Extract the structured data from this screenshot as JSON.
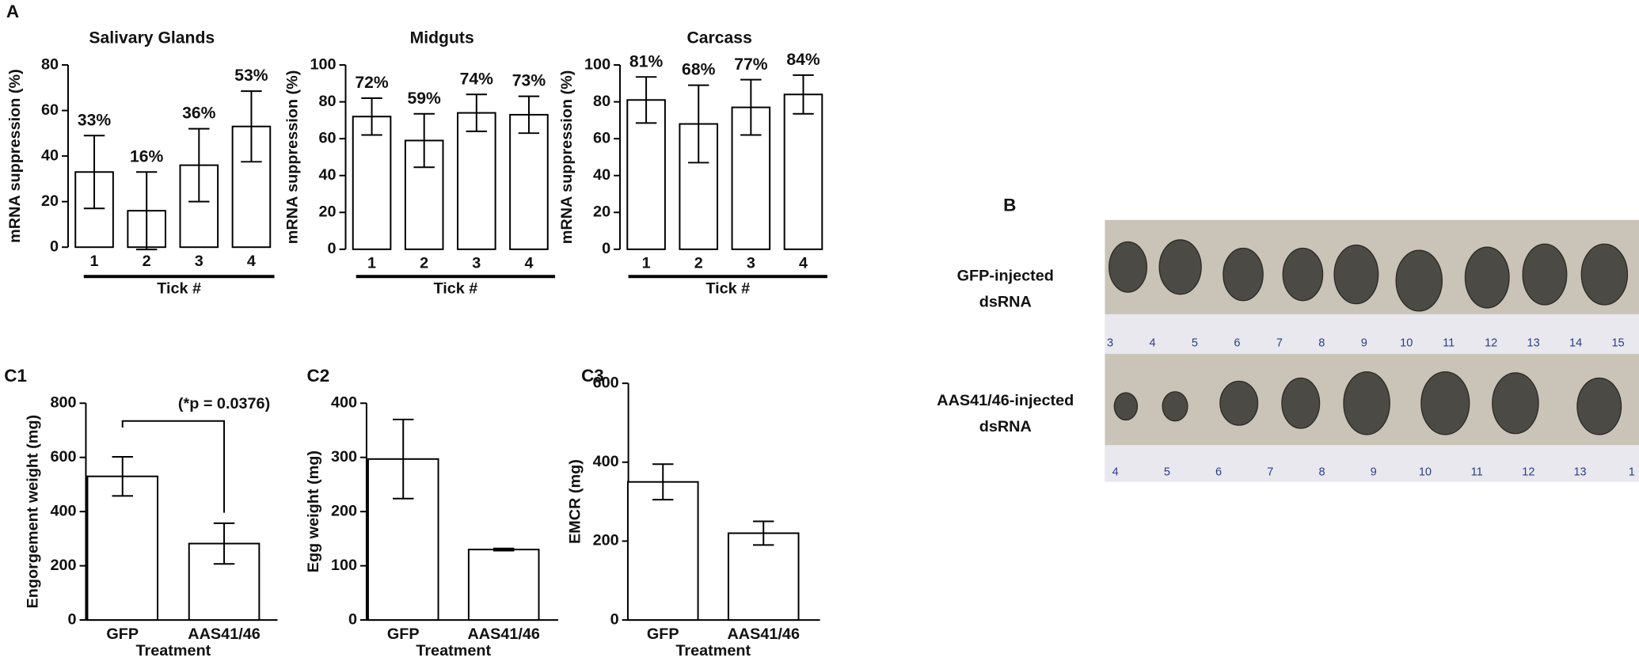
{
  "panel_labels": [
    "A",
    "B",
    "C1",
    "C2",
    "C3"
  ],
  "photo": {
    "rows": [
      [
        "GFP-injected",
        "dsRNA"
      ],
      [
        "AAS41/46-injected",
        "dsRNA"
      ]
    ],
    "ruler_top": [
      3,
      4,
      5,
      6,
      7,
      8,
      9,
      10,
      11,
      12,
      13,
      14,
      15
    ],
    "ruler_bottom": [
      4,
      5,
      6,
      7,
      8,
      9,
      10,
      11,
      12,
      13,
      1
    ]
  },
  "chart_data": [
    {
      "type": "bar",
      "title": "Salivary Glands",
      "ylabel": "mRNA suppression (%)",
      "xlabel": "Tick #",
      "categories": [
        1,
        2,
        3,
        4
      ],
      "values": [
        33,
        16,
        36,
        53
      ],
      "value_labels": [
        "33%",
        "16%",
        "36%",
        "53%"
      ],
      "errors": [
        16,
        17,
        16,
        15.5
      ],
      "ylim": [
        0,
        80
      ],
      "yticks": [
        0,
        20,
        40,
        60,
        80
      ],
      "color": "#ffffff"
    },
    {
      "type": "bar",
      "title": "Midguts",
      "ylabel": "mRNA suppression (%)",
      "xlabel": "Tick #",
      "categories": [
        1,
        2,
        3,
        4
      ],
      "values": [
        72,
        59,
        74,
        73
      ],
      "value_labels": [
        "72%",
        "59%",
        "74%",
        "73%"
      ],
      "errors": [
        10,
        14.5,
        10,
        10
      ],
      "ylim": [
        0,
        100
      ],
      "yticks": [
        0,
        20,
        40,
        60,
        80,
        100
      ],
      "color": "#ffffff"
    },
    {
      "type": "bar",
      "title": "Carcass",
      "ylabel": "mRNA suppression (%)",
      "xlabel": "Tick #",
      "categories": [
        1,
        2,
        3,
        4
      ],
      "values": [
        81,
        68,
        77,
        84
      ],
      "value_labels": [
        "81%",
        "68%",
        "77%",
        "84%"
      ],
      "errors": [
        12.5,
        21,
        15,
        10.5
      ],
      "ylim": [
        0,
        100
      ],
      "yticks": [
        0,
        20,
        40,
        60,
        80,
        100
      ],
      "color": "#ffffff"
    },
    {
      "type": "bar",
      "ylabel": "Engorgement weight (mg)",
      "xlabel": "Treatment",
      "annotation": "(*p = 0.0376)",
      "categories": [
        "GFP",
        "AAS41/46"
      ],
      "values": [
        530,
        282
      ],
      "errors": [
        72,
        75
      ],
      "ylim": [
        0,
        800
      ],
      "yticks": [
        0,
        200,
        400,
        600,
        800
      ],
      "color": "#ffffff"
    },
    {
      "type": "bar",
      "ylabel": "Egg weight (mg)",
      "xlabel": "Treatment",
      "categories": [
        "GFP",
        "AAS41/46"
      ],
      "values": [
        297,
        130
      ],
      "errors": [
        73,
        2
      ],
      "ylim": [
        0,
        400
      ],
      "yticks": [
        0,
        100,
        200,
        300,
        400
      ],
      "color": "#ffffff"
    },
    {
      "type": "bar",
      "ylabel": "EMCR (mg)",
      "xlabel": "Treatment",
      "categories": [
        "GFP",
        "AAS41/46"
      ],
      "values": [
        350,
        220
      ],
      "errors": [
        45,
        30
      ],
      "ylim": [
        0,
        600
      ],
      "yticks": [
        0,
        200,
        400,
        600
      ],
      "color": "#ffffff"
    }
  ]
}
